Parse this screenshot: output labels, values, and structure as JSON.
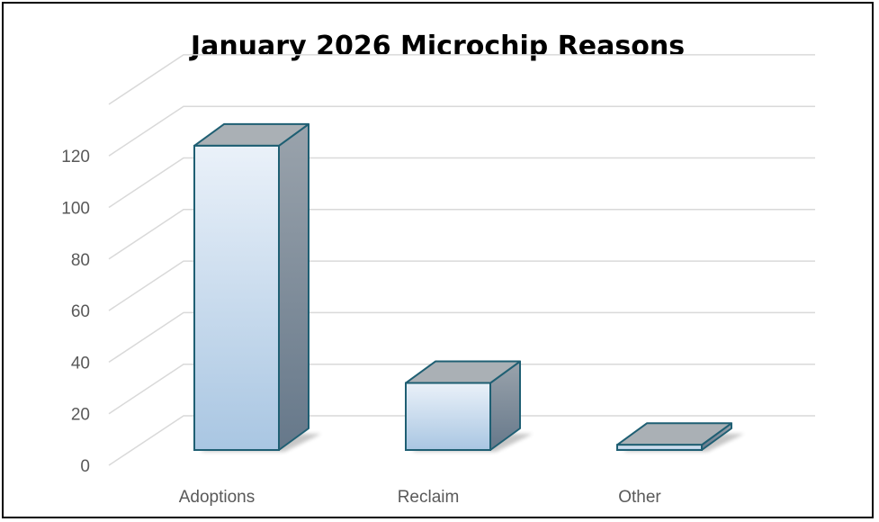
{
  "chart_data": {
    "type": "bar",
    "title": "January 2026 Microchip Reasons",
    "categories": [
      "Adoptions",
      "Reclaim",
      "Other"
    ],
    "values": [
      118,
      26,
      2
    ],
    "ylim": [
      0,
      140
    ],
    "yticks": [
      0,
      20,
      40,
      60,
      80,
      100,
      120
    ],
    "grid": true,
    "style": "3d-column",
    "colors": {
      "bar_front_top": "#eaf1f9",
      "bar_front_bottom": "#a9c6e2",
      "bar_side_top": "#9aa3ac",
      "bar_side_bottom": "#66788a",
      "bar_top": "#aab0b5",
      "bar_outline": "#1f5f73",
      "gridline": "#d9d9d9",
      "text": "#595959"
    }
  }
}
